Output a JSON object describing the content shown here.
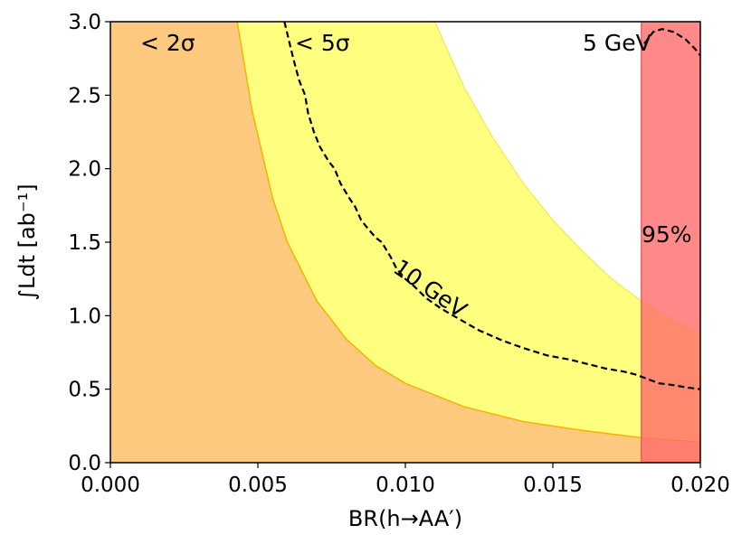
{
  "chart_data": {
    "type": "area",
    "xlabel": "BR(h→AA′)",
    "ylabel": "∫Ldt [ab⁻¹]",
    "xlim": [
      0.0,
      0.02
    ],
    "ylim": [
      0.0,
      3.0
    ],
    "xticks": [
      "0.000",
      "0.005",
      "0.010",
      "0.015",
      "0.020"
    ],
    "xtick_values": [
      0.0,
      0.005,
      0.01,
      0.015,
      0.02
    ],
    "yticks": [
      "0.0",
      "0.5",
      "1.0",
      "1.5",
      "2.0",
      "2.5",
      "3.0"
    ],
    "ytick_values": [
      0.0,
      0.5,
      1.0,
      1.5,
      2.0,
      2.5,
      3.0
    ],
    "grid": false,
    "regions": [
      {
        "label": "< 2σ",
        "color": "#fdc97e",
        "boundary_x": [
          0.0043,
          0.0048,
          0.0055,
          0.006,
          0.007,
          0.008,
          0.009,
          0.01,
          0.012,
          0.014,
          0.016,
          0.018,
          0.02
        ],
        "boundary_y": [
          3.0,
          2.4,
          1.8,
          1.5,
          1.1,
          0.84,
          0.66,
          0.54,
          0.38,
          0.28,
          0.22,
          0.17,
          0.14
        ]
      },
      {
        "label": "< 5σ",
        "color": "#ffff7f",
        "boundary_x": [
          0.011,
          0.012,
          0.013,
          0.014,
          0.015,
          0.016,
          0.017,
          0.018,
          0.019,
          0.02
        ],
        "boundary_y": [
          3.0,
          2.55,
          2.2,
          1.9,
          1.65,
          1.44,
          1.25,
          1.1,
          0.98,
          0.88
        ]
      }
    ],
    "exclusion_band": {
      "label": "95%",
      "x_from": 0.018,
      "x_to": 0.02,
      "color": "#ff6b6b"
    },
    "contours": [
      {
        "label": "10 GeV",
        "style": "dashed",
        "x": [
          0.0059,
          0.0062,
          0.0064,
          0.0066,
          0.0067,
          0.0069,
          0.0071,
          0.0074,
          0.0076,
          0.0078,
          0.0081,
          0.0083,
          0.0085,
          0.0087,
          0.009,
          0.0092,
          0.0095,
          0.0097,
          0.01,
          0.0103,
          0.0107,
          0.0112,
          0.0118,
          0.0125,
          0.0133,
          0.014,
          0.0148,
          0.0156,
          0.0162,
          0.0168,
          0.0174,
          0.0178,
          0.0182,
          0.0186,
          0.019,
          0.0196,
          0.02
        ],
        "y": [
          3.0,
          2.75,
          2.6,
          2.5,
          2.38,
          2.25,
          2.15,
          2.05,
          2.0,
          1.9,
          1.8,
          1.74,
          1.65,
          1.6,
          1.53,
          1.5,
          1.4,
          1.32,
          1.25,
          1.2,
          1.12,
          1.05,
          0.98,
          0.9,
          0.83,
          0.78,
          0.73,
          0.7,
          0.67,
          0.64,
          0.62,
          0.6,
          0.57,
          0.54,
          0.53,
          0.51,
          0.5
        ]
      },
      {
        "label": "5 GeV",
        "style": "dashed",
        "x": [
          0.0181,
          0.0184,
          0.0187,
          0.0191,
          0.0195,
          0.0198,
          0.02
        ],
        "y": [
          2.85,
          2.93,
          2.95,
          2.93,
          2.88,
          2.82,
          2.77
        ]
      }
    ]
  }
}
